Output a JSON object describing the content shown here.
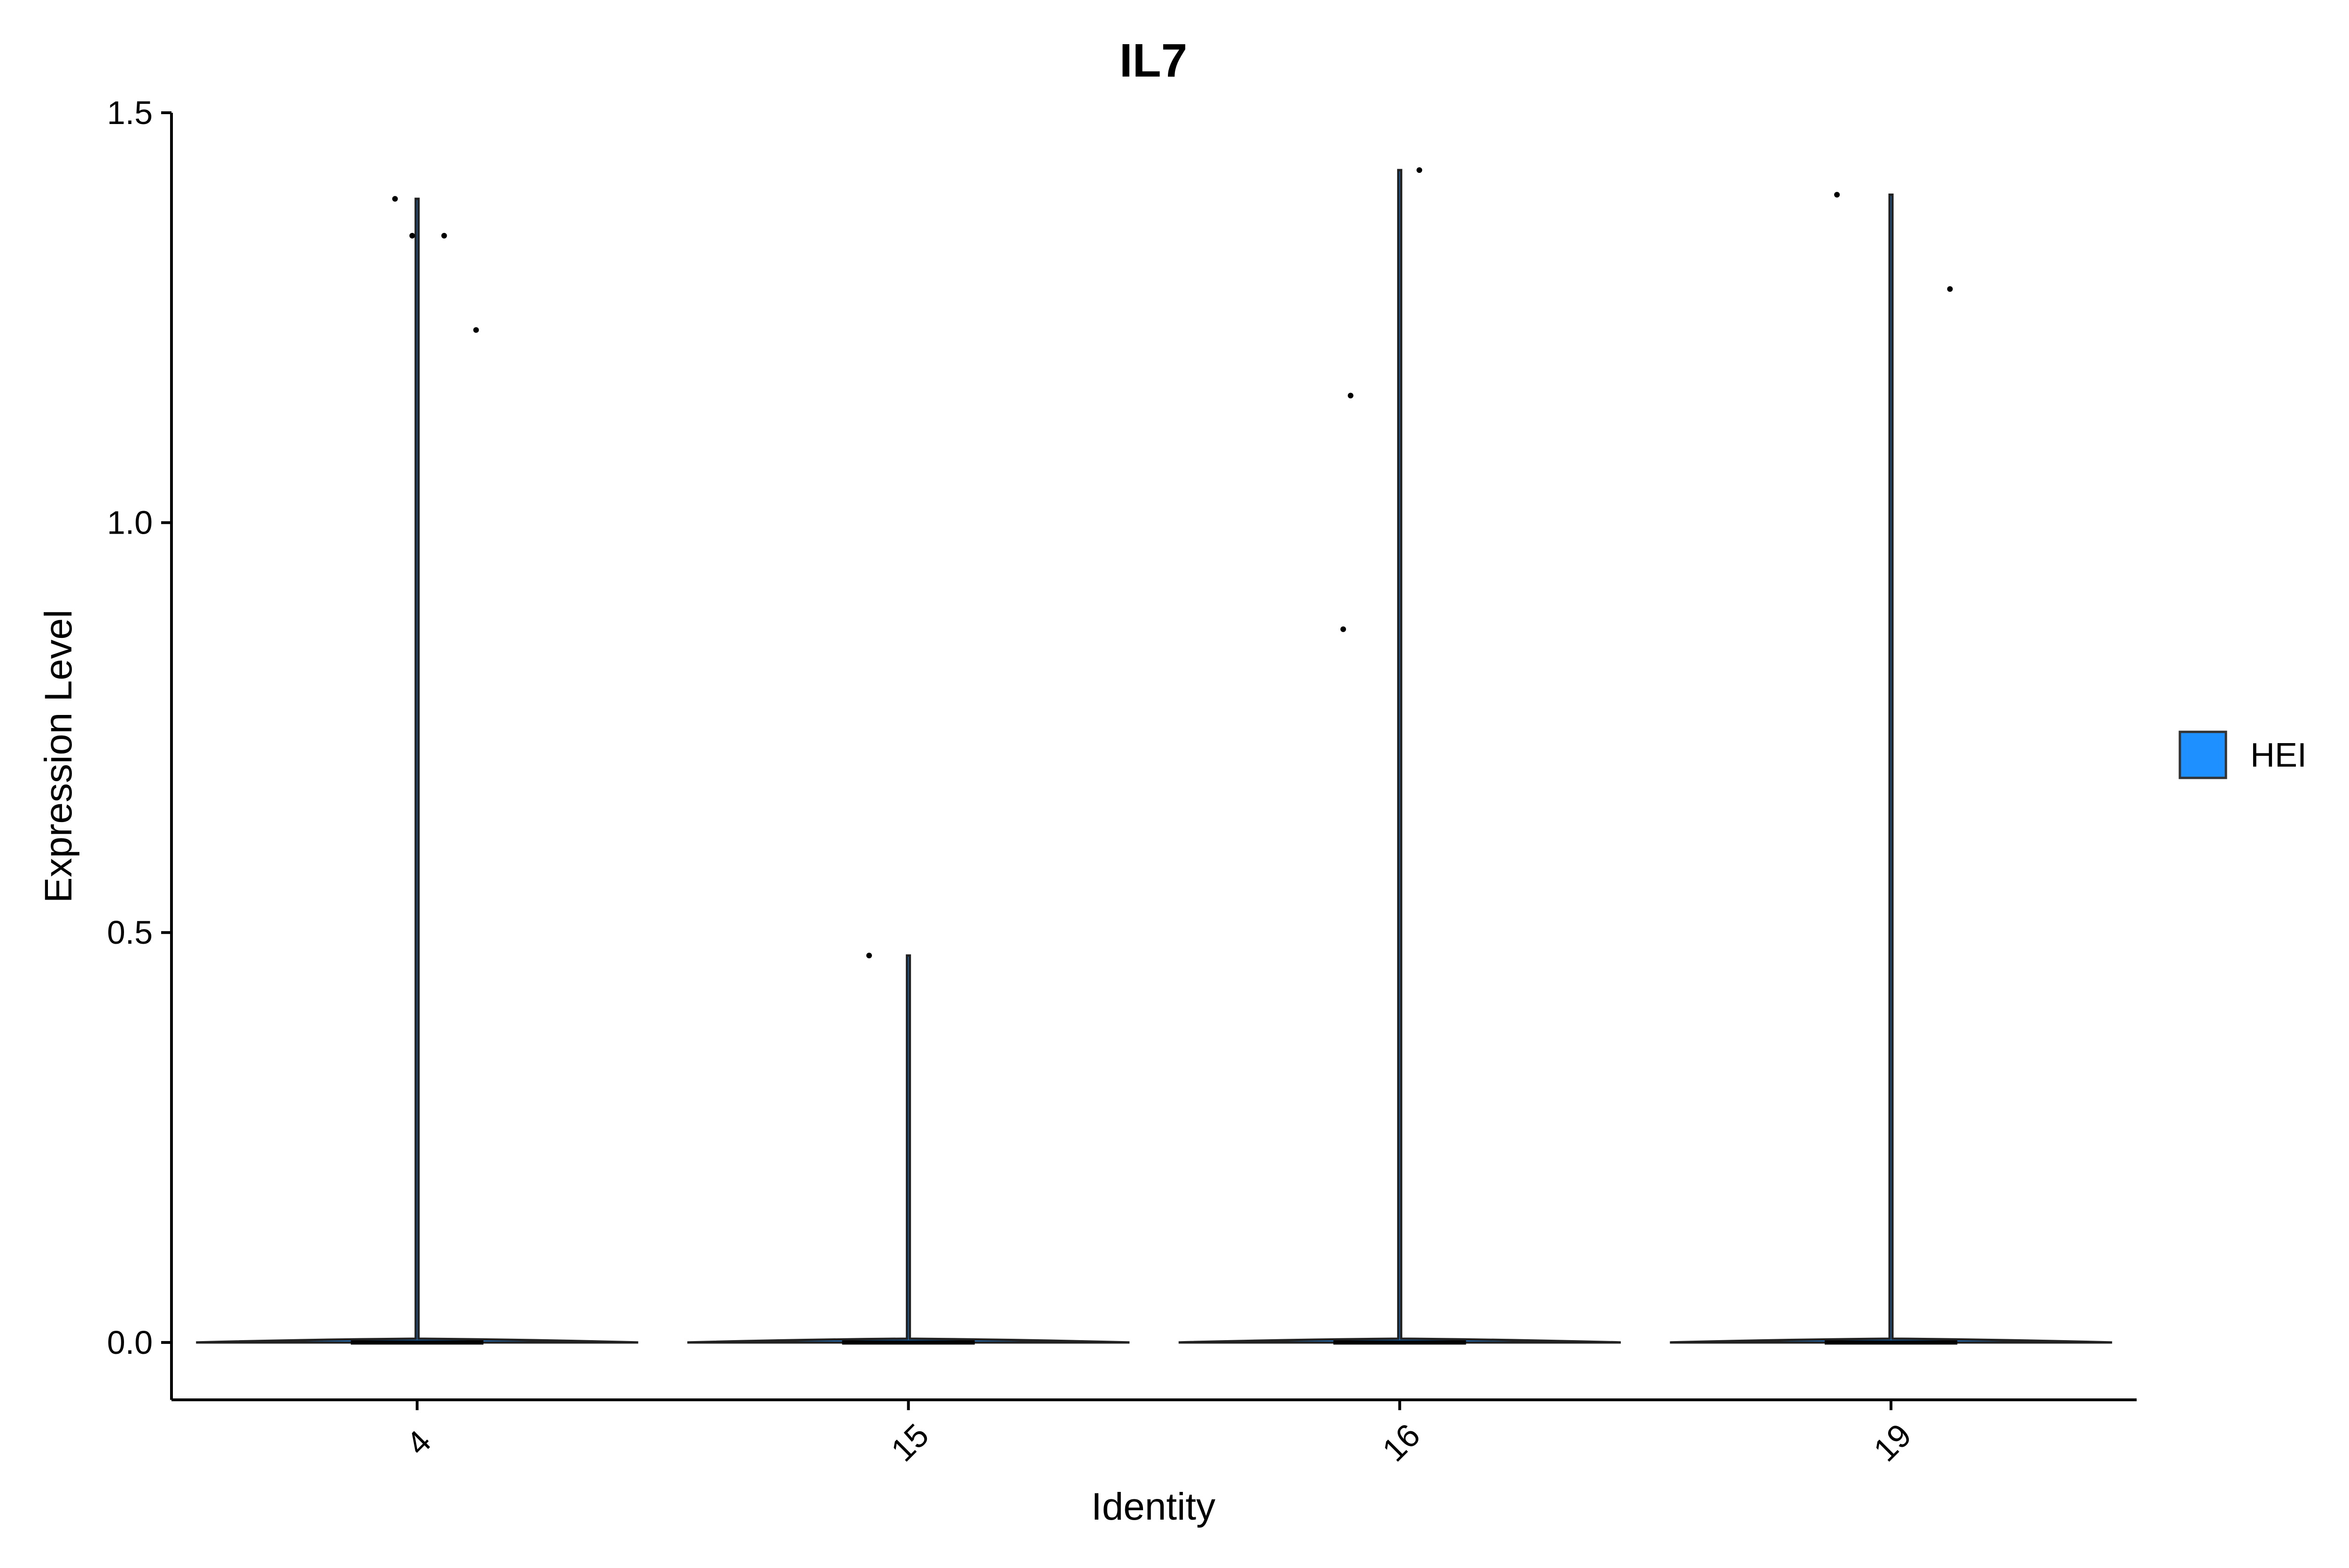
{
  "chart_data": {
    "type": "violin",
    "title": "IL7",
    "xlabel": "Identity",
    "ylabel": "Expression Level",
    "categories": [
      "4",
      "15",
      "16",
      "19"
    ],
    "yticks": [
      "0.0",
      "0.5",
      "1.0",
      "1.5"
    ],
    "ytick_values": [
      0,
      0.5,
      1.0,
      1.5
    ],
    "ylim": [
      -0.07,
      1.5
    ],
    "x_tick_rotation_deg": 45,
    "legend": {
      "position": "right",
      "entries": [
        {
          "label": "HEI",
          "color": "#1E90FF"
        }
      ]
    },
    "fill_color": "#1E90FF",
    "grid": false,
    "series": [
      {
        "category": "4",
        "max": 1.395,
        "bulk": 0,
        "points": [
          {
            "dx": -0.045,
            "y": 1.395
          },
          {
            "dx": -0.01,
            "y": 1.35
          },
          {
            "dx": 0.055,
            "y": 1.35
          },
          {
            "dx": 0.12,
            "y": 1.235
          }
        ]
      },
      {
        "category": "15",
        "max": 0.472,
        "bulk": 0,
        "points": [
          {
            "dx": -0.08,
            "y": 0.472
          }
        ]
      },
      {
        "category": "16",
        "max": 1.43,
        "bulk": 0,
        "points": [
          {
            "dx": 0.04,
            "y": 1.43
          },
          {
            "dx": -0.1,
            "y": 1.155
          },
          {
            "dx": -0.115,
            "y": 0.87
          }
        ]
      },
      {
        "category": "19",
        "max": 1.4,
        "bulk": 0,
        "points": [
          {
            "dx": -0.11,
            "y": 1.4
          },
          {
            "dx": 0.12,
            "y": 1.285
          }
        ]
      }
    ]
  }
}
